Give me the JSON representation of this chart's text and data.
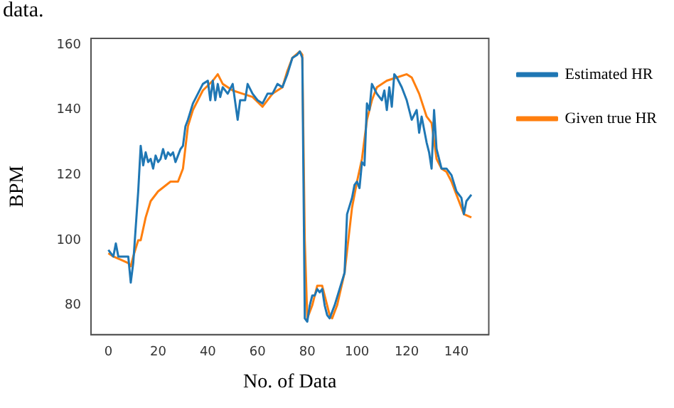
{
  "chart_data": {
    "type": "line",
    "xlabel": "No. of Data",
    "ylabel": "BPM",
    "annotations": [
      "data."
    ],
    "xlim": [
      -7,
      153
    ],
    "xticks": [
      0,
      20,
      40,
      60,
      80,
      100,
      120,
      140
    ],
    "ylim": [
      71,
      162
    ],
    "yticks": [
      80,
      100,
      120,
      140,
      160
    ],
    "grid": false,
    "legend": "right",
    "marker": "none",
    "line_style": "solid",
    "series": [
      {
        "name": "Estimated HR",
        "color": "#1f77b4",
        "x": [
          0,
          2,
          3,
          4,
          6,
          8,
          9,
          10,
          12,
          13,
          14,
          15,
          16,
          17,
          18,
          19,
          20,
          21,
          22,
          23,
          24,
          25,
          26,
          27,
          28,
          29,
          30,
          31,
          32,
          34,
          36,
          38,
          40,
          41,
          42,
          43,
          44,
          45,
          46,
          48,
          50,
          52,
          53,
          55,
          56,
          58,
          60,
          62,
          64,
          66,
          68,
          70,
          72,
          74,
          76,
          77,
          78,
          79,
          80,
          81,
          82,
          83,
          84,
          85,
          86,
          87,
          88,
          89,
          91,
          93,
          95,
          96,
          98,
          99,
          100,
          101,
          102,
          103,
          104,
          105,
          106,
          108,
          110,
          111,
          112,
          113,
          114,
          115,
          116,
          118,
          120,
          122,
          124,
          125,
          126,
          128,
          129,
          130,
          131,
          132,
          134,
          136,
          138,
          140,
          142,
          143,
          144,
          146
        ],
        "values": [
          97,
          95,
          99,
          95,
          95,
          95,
          87,
          93,
          115,
          129,
          123,
          127,
          124,
          125,
          122,
          126,
          124,
          125,
          128,
          125,
          127,
          126,
          127,
          124,
          126,
          128,
          129,
          135,
          137,
          142,
          145,
          148,
          149,
          143,
          149,
          143,
          148,
          144,
          147,
          145,
          148,
          137,
          143,
          143,
          148,
          145,
          143,
          142,
          145,
          145,
          148,
          147,
          151,
          156,
          157,
          158,
          156,
          76,
          75,
          80,
          83,
          83,
          85,
          84,
          85,
          80,
          77,
          76,
          80,
          85,
          90,
          108,
          113,
          117,
          118,
          116,
          124,
          123,
          142,
          140,
          148,
          145,
          143,
          146,
          140,
          147,
          141,
          151,
          150,
          147,
          143,
          137,
          140,
          133,
          138,
          130,
          127,
          122,
          140,
          128,
          122,
          122,
          120,
          115,
          113,
          108,
          112,
          114
        ]
      },
      {
        "name": "Given true HR",
        "color": "#ff7f0e",
        "x": [
          0,
          2,
          5,
          8,
          9,
          10,
          12,
          13,
          15,
          17,
          20,
          25,
          28,
          30,
          32,
          34,
          38,
          42,
          44,
          46,
          50,
          54,
          58,
          62,
          66,
          70,
          72,
          74,
          77,
          78,
          79,
          80,
          82,
          84,
          86,
          88,
          89,
          90,
          92,
          95,
          98,
          100,
          102,
          104,
          106,
          108,
          112,
          116,
          120,
          122,
          125,
          128,
          130,
          132,
          134,
          136,
          138,
          140,
          143,
          146
        ],
        "values": [
          96,
          95,
          94,
          93,
          92,
          95,
          100,
          100,
          107,
          112,
          115,
          118,
          118,
          122,
          135,
          140,
          146,
          149,
          151,
          148,
          146,
          145,
          144,
          141,
          145,
          147,
          152,
          156,
          158,
          157,
          100,
          76,
          80,
          86,
          86,
          80,
          77,
          76,
          80,
          90,
          110,
          118,
          125,
          137,
          143,
          147,
          149,
          150,
          151,
          150,
          145,
          138,
          136,
          125,
          122,
          121,
          118,
          114,
          108,
          107
        ]
      }
    ]
  }
}
